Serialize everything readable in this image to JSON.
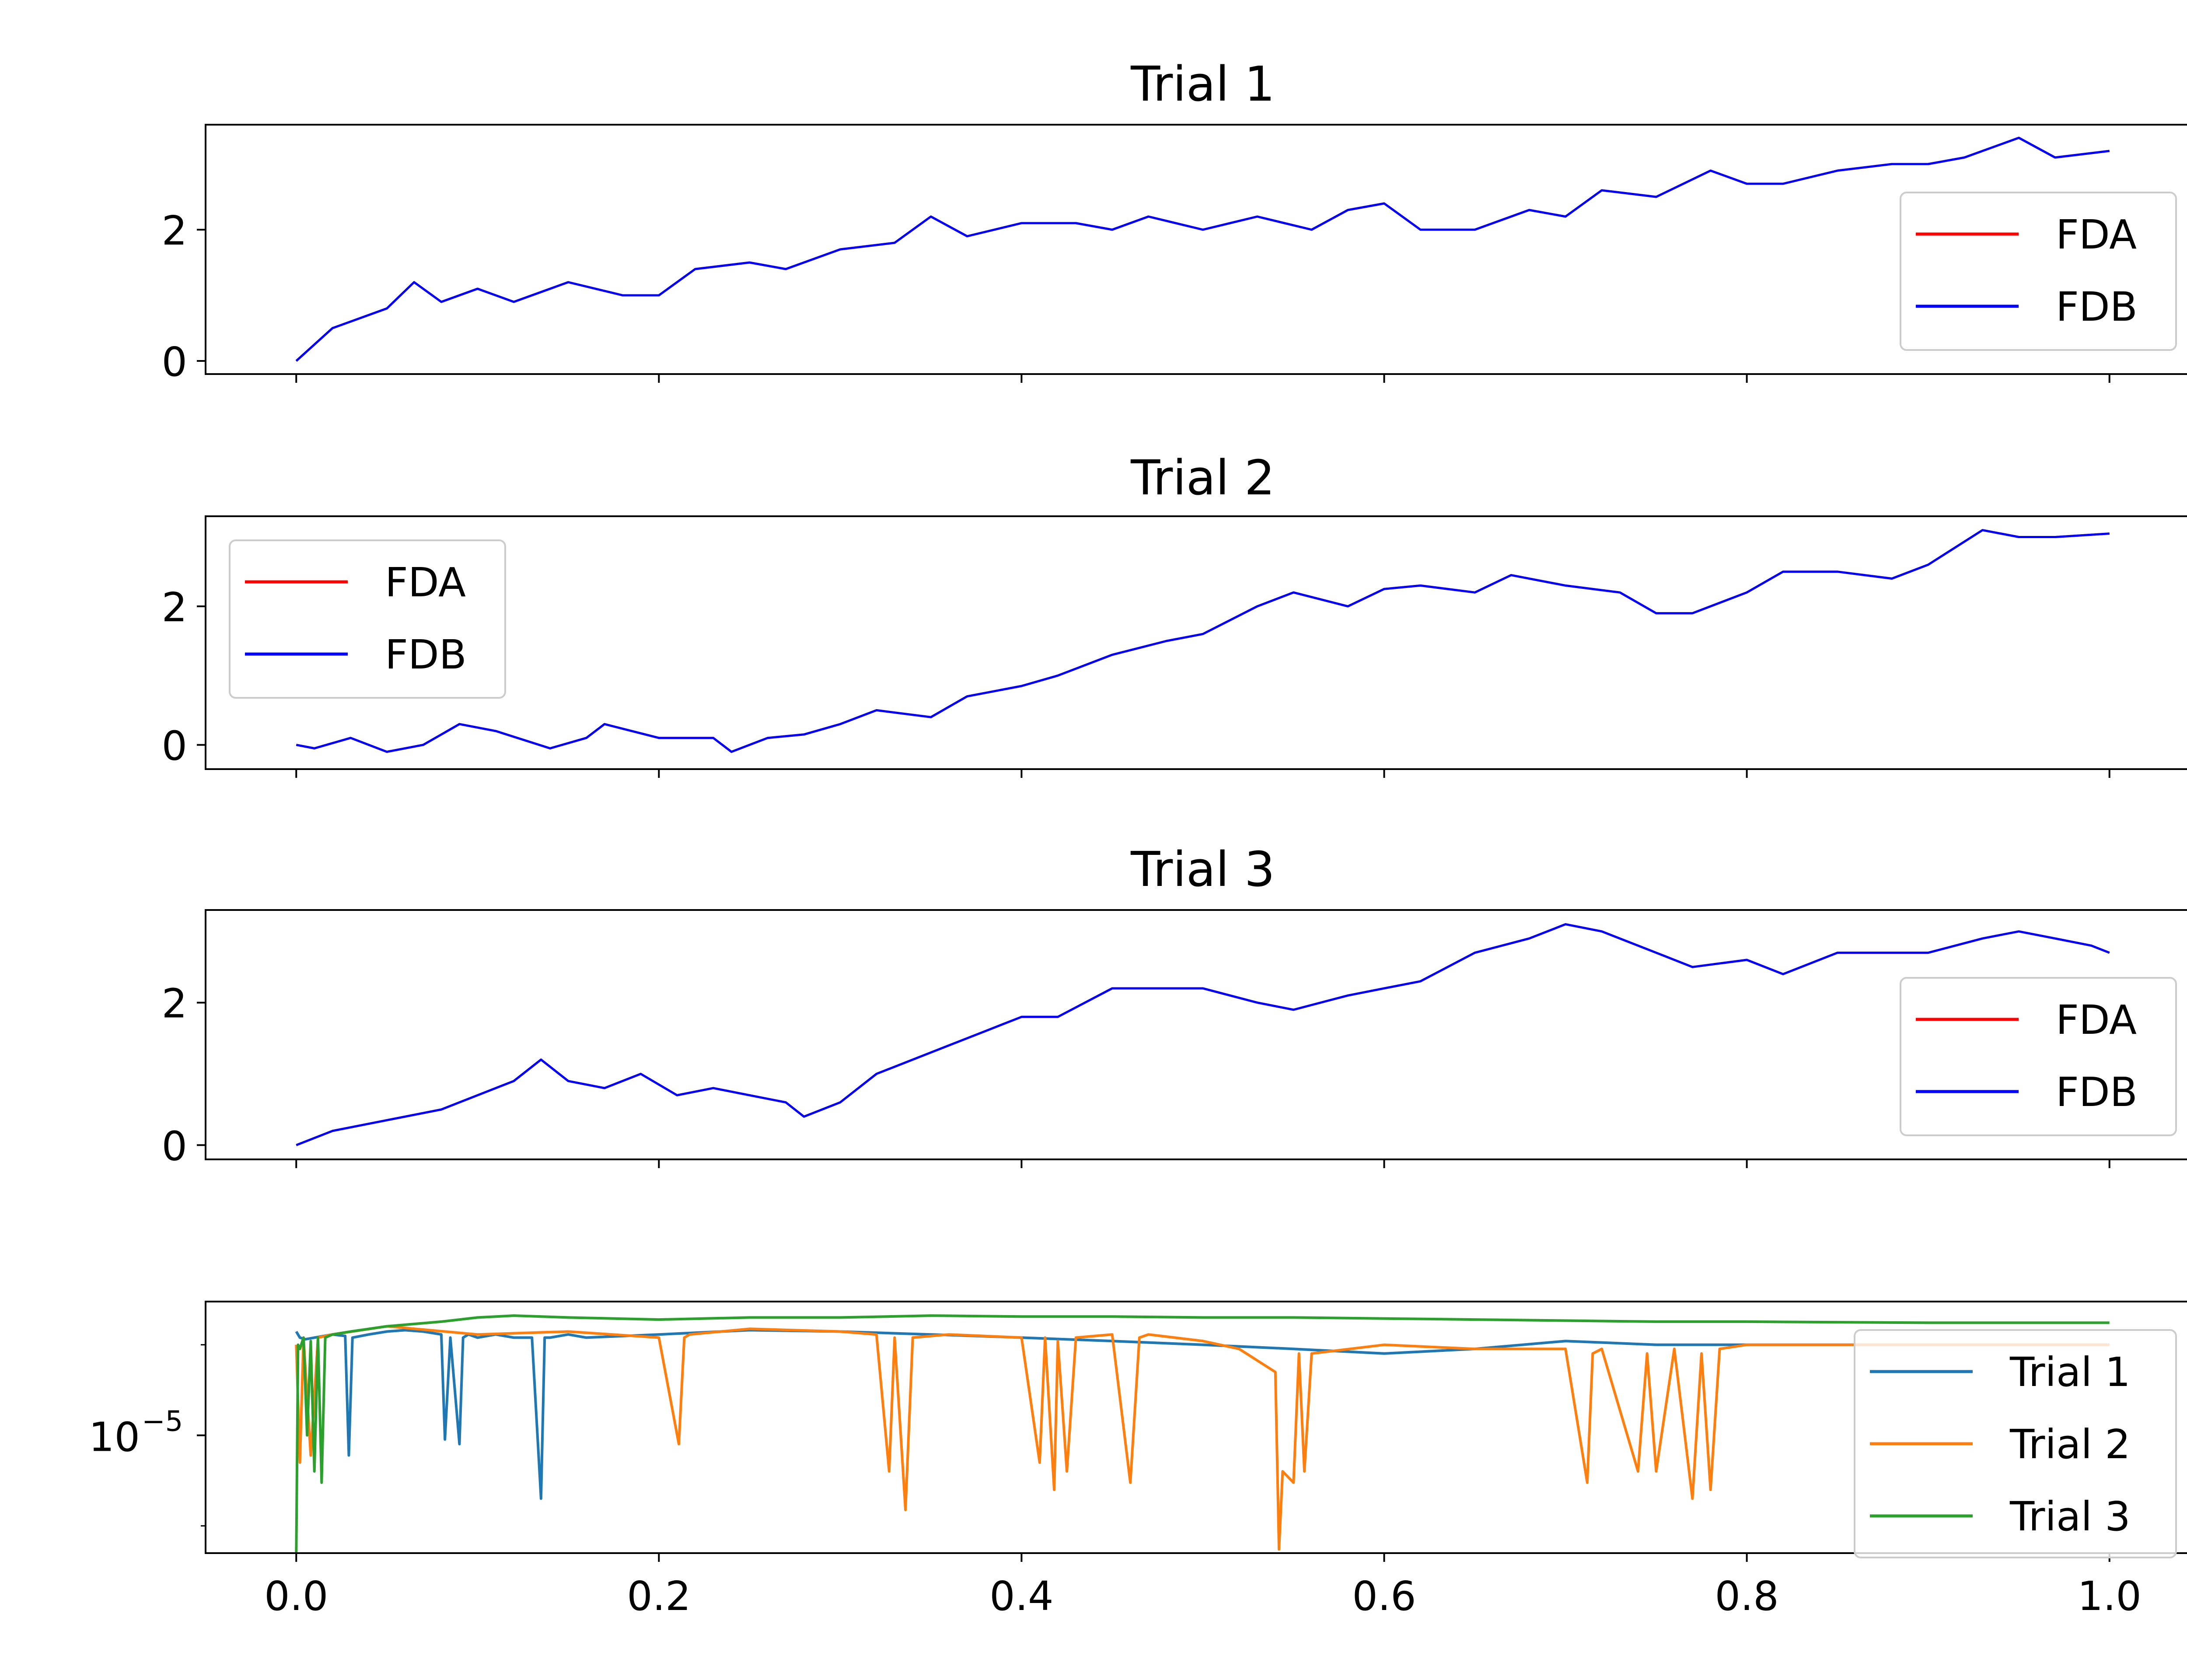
{
  "chart_data": [
    {
      "type": "line",
      "title": "Trial 1",
      "xlim": [
        -0.05,
        1.05
      ],
      "ylim": [
        -0.2,
        3.6
      ],
      "yticks": [
        0,
        2
      ],
      "ytick_labels": [
        "0",
        "2"
      ],
      "xticks": [
        0.0,
        0.2,
        0.4,
        0.6,
        0.8,
        1.0
      ],
      "legend": {
        "placement": "right",
        "entries": [
          "FDA",
          "FDB"
        ]
      },
      "series": [
        {
          "name": "FDA",
          "color": "#ff0000",
          "width": 5,
          "x": [
            0,
            0.02,
            0.05,
            0.065,
            0.08,
            0.1,
            0.12,
            0.15,
            0.18,
            0.2,
            0.22,
            0.25,
            0.27,
            0.3,
            0.33,
            0.35,
            0.37,
            0.4,
            0.43,
            0.45,
            0.47,
            0.5,
            0.53,
            0.56,
            0.58,
            0.6,
            0.62,
            0.65,
            0.68,
            0.7,
            0.72,
            0.75,
            0.78,
            0.8,
            0.82,
            0.85,
            0.88,
            0.9,
            0.92,
            0.95,
            0.97,
            1.0
          ],
          "y": [
            0,
            0.5,
            0.8,
            1.2,
            0.9,
            1.1,
            0.9,
            1.2,
            1.0,
            1.0,
            1.4,
            1.5,
            1.4,
            1.7,
            1.8,
            2.2,
            1.9,
            2.1,
            2.1,
            2.0,
            2.2,
            2.0,
            2.2,
            2.0,
            2.3,
            2.4,
            2.0,
            2.0,
            2.3,
            2.2,
            2.6,
            2.5,
            2.9,
            2.7,
            2.7,
            2.9,
            3.0,
            3.0,
            3.1,
            3.4,
            3.1,
            3.2
          ]
        },
        {
          "name": "FDB",
          "color": "#0000ff",
          "width": 5,
          "x": [
            0,
            0.02,
            0.05,
            0.065,
            0.08,
            0.1,
            0.12,
            0.15,
            0.18,
            0.2,
            0.22,
            0.25,
            0.27,
            0.3,
            0.33,
            0.35,
            0.37,
            0.4,
            0.43,
            0.45,
            0.47,
            0.5,
            0.53,
            0.56,
            0.58,
            0.6,
            0.62,
            0.65,
            0.68,
            0.7,
            0.72,
            0.75,
            0.78,
            0.8,
            0.82,
            0.85,
            0.88,
            0.9,
            0.92,
            0.95,
            0.97,
            1.0
          ],
          "y": [
            0,
            0.5,
            0.8,
            1.2,
            0.9,
            1.1,
            0.9,
            1.2,
            1.0,
            1.0,
            1.4,
            1.5,
            1.4,
            1.7,
            1.8,
            2.2,
            1.9,
            2.1,
            2.1,
            2.0,
            2.2,
            2.0,
            2.2,
            2.0,
            2.3,
            2.4,
            2.0,
            2.0,
            2.3,
            2.2,
            2.6,
            2.5,
            2.9,
            2.7,
            2.7,
            2.9,
            3.0,
            3.0,
            3.1,
            3.4,
            3.1,
            3.2
          ]
        }
      ]
    },
    {
      "type": "line",
      "title": "Trial 2",
      "xlim": [
        -0.05,
        1.05
      ],
      "ylim": [
        -0.35,
        3.3
      ],
      "yticks": [
        0,
        2
      ],
      "ytick_labels": [
        "0",
        "2"
      ],
      "xticks": [
        0.0,
        0.2,
        0.4,
        0.6,
        0.8,
        1.0
      ],
      "legend": {
        "placement": "upper left",
        "entries": [
          "FDA",
          "FDB"
        ]
      },
      "series": [
        {
          "name": "FDA",
          "color": "#ff0000",
          "width": 5,
          "x": [
            0,
            0.01,
            0.03,
            0.05,
            0.07,
            0.09,
            0.11,
            0.14,
            0.16,
            0.17,
            0.2,
            0.23,
            0.24,
            0.26,
            0.28,
            0.3,
            0.32,
            0.35,
            0.37,
            0.4,
            0.42,
            0.45,
            0.48,
            0.5,
            0.53,
            0.55,
            0.58,
            0.6,
            0.62,
            0.65,
            0.67,
            0.7,
            0.73,
            0.75,
            0.77,
            0.8,
            0.82,
            0.85,
            0.88,
            0.9,
            0.93,
            0.95,
            0.97,
            1.0
          ],
          "y": [
            0,
            -0.05,
            0.1,
            -0.1,
            0.0,
            0.3,
            0.2,
            -0.05,
            0.1,
            0.3,
            0.1,
            0.1,
            -0.1,
            0.1,
            0.15,
            0.3,
            0.5,
            0.4,
            0.7,
            0.85,
            1.0,
            1.3,
            1.5,
            1.6,
            2.0,
            2.2,
            2.0,
            2.25,
            2.3,
            2.2,
            2.45,
            2.3,
            2.2,
            1.9,
            1.9,
            2.2,
            2.5,
            2.5,
            2.4,
            2.6,
            3.1,
            3.0,
            3.0,
            3.05
          ]
        },
        {
          "name": "FDB",
          "color": "#0000ff",
          "width": 5,
          "x": [
            0,
            0.01,
            0.03,
            0.05,
            0.07,
            0.09,
            0.11,
            0.14,
            0.16,
            0.17,
            0.2,
            0.23,
            0.24,
            0.26,
            0.28,
            0.3,
            0.32,
            0.35,
            0.37,
            0.4,
            0.42,
            0.45,
            0.48,
            0.5,
            0.53,
            0.55,
            0.58,
            0.6,
            0.62,
            0.65,
            0.67,
            0.7,
            0.73,
            0.75,
            0.77,
            0.8,
            0.82,
            0.85,
            0.88,
            0.9,
            0.93,
            0.95,
            0.97,
            1.0
          ],
          "y": [
            0,
            -0.05,
            0.1,
            -0.1,
            0.0,
            0.3,
            0.2,
            -0.05,
            0.1,
            0.3,
            0.1,
            0.1,
            -0.1,
            0.1,
            0.15,
            0.3,
            0.5,
            0.4,
            0.7,
            0.85,
            1.0,
            1.3,
            1.5,
            1.6,
            2.0,
            2.2,
            2.0,
            2.25,
            2.3,
            2.2,
            2.45,
            2.3,
            2.2,
            1.9,
            1.9,
            2.2,
            2.5,
            2.5,
            2.4,
            2.6,
            3.1,
            3.0,
            3.0,
            3.05
          ]
        }
      ]
    },
    {
      "type": "line",
      "title": "Trial 3",
      "xlim": [
        -0.05,
        1.05
      ],
      "ylim": [
        -0.2,
        3.3
      ],
      "yticks": [
        0,
        2
      ],
      "ytick_labels": [
        "0",
        "2"
      ],
      "xticks": [
        0.0,
        0.2,
        0.4,
        0.6,
        0.8,
        1.0
      ],
      "legend": {
        "placement": "right",
        "entries": [
          "FDA",
          "FDB"
        ]
      },
      "series": [
        {
          "name": "FDA",
          "color": "#ff0000",
          "width": 5,
          "x": [
            0,
            0.02,
            0.05,
            0.08,
            0.1,
            0.12,
            0.135,
            0.15,
            0.17,
            0.19,
            0.21,
            0.23,
            0.25,
            0.27,
            0.28,
            0.3,
            0.32,
            0.35,
            0.38,
            0.4,
            0.42,
            0.45,
            0.47,
            0.5,
            0.53,
            0.55,
            0.58,
            0.6,
            0.62,
            0.65,
            0.68,
            0.7,
            0.72,
            0.75,
            0.77,
            0.8,
            0.82,
            0.85,
            0.88,
            0.9,
            0.93,
            0.95,
            0.97,
            0.99,
            1.0
          ],
          "y": [
            0,
            0.2,
            0.35,
            0.5,
            0.7,
            0.9,
            1.2,
            0.9,
            0.8,
            1.0,
            0.7,
            0.8,
            0.7,
            0.6,
            0.4,
            0.6,
            1.0,
            1.3,
            1.6,
            1.8,
            1.8,
            2.2,
            2.2,
            2.2,
            2.0,
            1.9,
            2.1,
            2.2,
            2.3,
            2.7,
            2.9,
            3.1,
            3.0,
            2.7,
            2.5,
            2.6,
            2.4,
            2.7,
            2.7,
            2.7,
            2.9,
            3.0,
            2.9,
            2.8,
            2.7
          ]
        },
        {
          "name": "FDB",
          "color": "#0000ff",
          "width": 5,
          "x": [
            0,
            0.02,
            0.05,
            0.08,
            0.1,
            0.12,
            0.135,
            0.15,
            0.17,
            0.19,
            0.21,
            0.23,
            0.25,
            0.27,
            0.28,
            0.3,
            0.32,
            0.35,
            0.38,
            0.4,
            0.42,
            0.45,
            0.47,
            0.5,
            0.53,
            0.55,
            0.58,
            0.6,
            0.62,
            0.65,
            0.68,
            0.7,
            0.72,
            0.75,
            0.77,
            0.8,
            0.82,
            0.85,
            0.88,
            0.9,
            0.93,
            0.95,
            0.97,
            0.99,
            1.0
          ],
          "y": [
            0,
            0.2,
            0.35,
            0.5,
            0.7,
            0.9,
            1.2,
            0.9,
            0.8,
            1.0,
            0.7,
            0.8,
            0.7,
            0.6,
            0.4,
            0.6,
            1.0,
            1.3,
            1.6,
            1.8,
            1.8,
            2.2,
            2.2,
            2.2,
            2.0,
            1.9,
            2.1,
            2.2,
            2.3,
            2.7,
            2.9,
            3.1,
            3.0,
            2.7,
            2.5,
            2.6,
            2.4,
            2.7,
            2.7,
            2.7,
            2.9,
            3.0,
            2.9,
            2.8,
            2.7
          ]
        }
      ]
    },
    {
      "type": "line",
      "title": "",
      "yscale": "log",
      "xlim": [
        -0.05,
        1.05
      ],
      "ylim": [
        5e-07,
        0.0003
      ],
      "yticks": [
        1e-05
      ],
      "ytick_labels": [
        "10",
        "−5"
      ],
      "xticks": [
        0.0,
        0.2,
        0.4,
        0.6,
        0.8,
        1.0
      ],
      "xtick_labels": [
        "0.0",
        "0.2",
        "0.4",
        "0.6",
        "0.8",
        "1.0"
      ],
      "legend": {
        "placement": "right",
        "entries": [
          "Trial 1",
          "Trial 2",
          "Trial 3"
        ]
      },
      "series": [
        {
          "name": "Trial 1",
          "color": "#1f77b4",
          "width": 6,
          "x": [
            0,
            0.002,
            0.005,
            0.01,
            0.02,
            0.027,
            0.029,
            0.031,
            0.04,
            0.05,
            0.06,
            0.07,
            0.08,
            0.082,
            0.085,
            0.09,
            0.092,
            0.095,
            0.1,
            0.11,
            0.12,
            0.13,
            0.135,
            0.137,
            0.14,
            0.15,
            0.16,
            0.2,
            0.25,
            0.3,
            0.35,
            0.4,
            0.45,
            0.5,
            0.55,
            0.6,
            0.65,
            0.7,
            0.75,
            0.8,
            0.9,
            1.0
          ],
          "y": [
            0.00014,
            0.00012,
            0.000115,
            0.00012,
            0.00013,
            0.000125,
            6e-06,
            0.00012,
            0.00013,
            0.00014,
            0.000145,
            0.00014,
            0.00013,
            9e-06,
            0.00012,
            8e-06,
            0.00012,
            0.00013,
            0.00012,
            0.00013,
            0.00012,
            0.00012,
            2e-06,
            0.00012,
            0.00012,
            0.00013,
            0.00012,
            0.00013,
            0.000145,
            0.00014,
            0.00013,
            0.00012,
            0.00011,
            0.0001,
            9e-05,
            8e-05,
            9e-05,
            0.00011,
            0.0001,
            0.0001,
            0.0001,
            0.0001
          ]
        },
        {
          "name": "Trial 2",
          "color": "#ff7f0e",
          "width": 6,
          "x": [
            0,
            0.002,
            0.004,
            0.008,
            0.012,
            0.02,
            0.05,
            0.1,
            0.15,
            0.2,
            0.211,
            0.214,
            0.217,
            0.25,
            0.3,
            0.32,
            0.327,
            0.33,
            0.336,
            0.34,
            0.36,
            0.4,
            0.41,
            0.413,
            0.418,
            0.42,
            0.425,
            0.43,
            0.45,
            0.46,
            0.465,
            0.47,
            0.5,
            0.52,
            0.54,
            0.542,
            0.544,
            0.55,
            0.553,
            0.556,
            0.56,
            0.6,
            0.65,
            0.7,
            0.712,
            0.715,
            0.72,
            0.74,
            0.745,
            0.75,
            0.76,
            0.77,
            0.775,
            0.78,
            0.785,
            0.8,
            0.9,
            1.0
          ],
          "y": [
            0.0001,
            5e-06,
            0.00012,
            6e-06,
            0.00012,
            0.00013,
            0.00016,
            0.00013,
            0.00014,
            0.00012,
            8e-06,
            0.00012,
            0.00013,
            0.00015,
            0.00014,
            0.00013,
            4e-06,
            0.00012,
            1.5e-06,
            0.00012,
            0.00013,
            0.00012,
            5e-06,
            0.00012,
            2.5e-06,
            0.00011,
            4e-06,
            0.00012,
            0.00013,
            3e-06,
            0.00012,
            0.00013,
            0.00011,
            9e-05,
            5e-05,
            5.5e-07,
            4e-06,
            3e-06,
            8e-05,
            4e-06,
            8e-05,
            0.0001,
            9e-05,
            9e-05,
            3e-06,
            8e-05,
            9e-05,
            4e-06,
            8e-05,
            4e-06,
            9e-05,
            2e-06,
            8e-05,
            2.5e-06,
            9e-05,
            0.0001,
            0.0001,
            0.0001
          ]
        },
        {
          "name": "Trial 3",
          "color": "#2ca02c",
          "width": 6,
          "x": [
            0,
            0.001,
            0.002,
            0.004,
            0.006,
            0.008,
            0.01,
            0.012,
            0.014,
            0.016,
            0.02,
            0.03,
            0.05,
            0.08,
            0.1,
            0.12,
            0.15,
            0.2,
            0.25,
            0.3,
            0.35,
            0.4,
            0.45,
            0.5,
            0.55,
            0.6,
            0.65,
            0.7,
            0.75,
            0.8,
            0.9,
            1.0
          ],
          "y": [
            5e-07,
            0.0001,
            9e-05,
            0.00012,
            1e-05,
            0.00011,
            4e-06,
            0.00012,
            3e-06,
            0.00012,
            0.00013,
            0.00014,
            0.00016,
            0.00018,
            0.0002,
            0.00021,
            0.0002,
            0.00019,
            0.0002,
            0.0002,
            0.00021,
            0.000205,
            0.000205,
            0.0002,
            0.0002,
            0.000195,
            0.00019,
            0.000185,
            0.00018,
            0.00018,
            0.000175,
            0.000175
          ]
        }
      ]
    }
  ]
}
